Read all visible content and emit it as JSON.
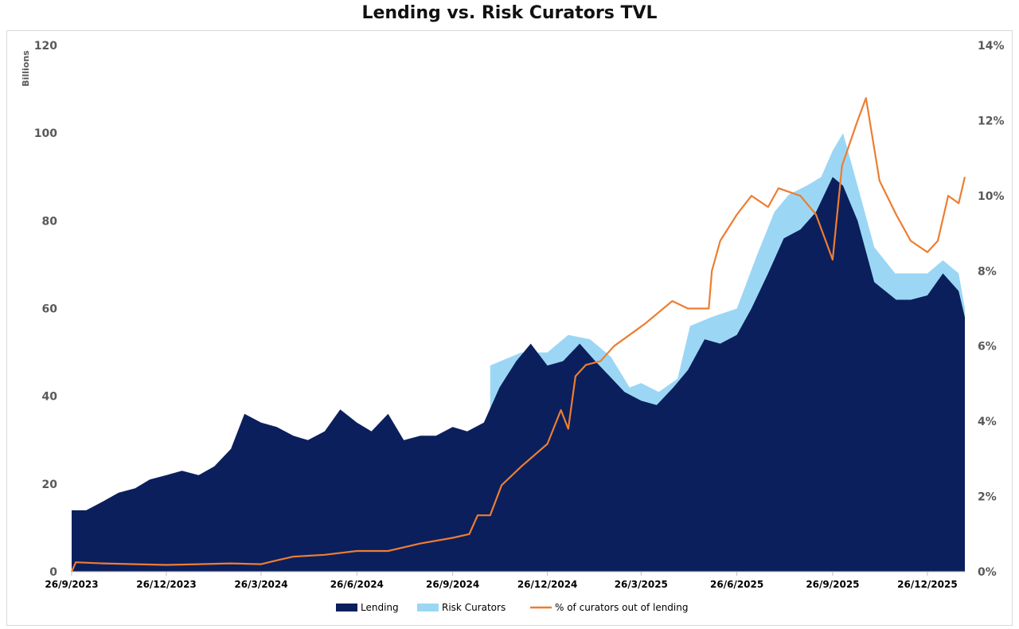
{
  "chart_data": {
    "type": "area",
    "title": "Lending vs. Risk Curators TVL",
    "y_left_unit_label": "Billions",
    "y_left_range": [
      0,
      120
    ],
    "y_left_ticks": [
      "0",
      "20",
      "40",
      "60",
      "80",
      "100",
      "120"
    ],
    "y_right_range": [
      0,
      14
    ],
    "y_right_ticks": [
      "0%",
      "2%",
      "4%",
      "6%",
      "8%",
      "10%",
      "12%",
      "14%"
    ],
    "x_range": [
      "2023-09-26",
      "2026-01-31"
    ],
    "x_ticks": [
      {
        "label": "26/9/2023",
        "date": "2023-09-26"
      },
      {
        "label": "26/12/2023",
        "date": "2023-12-26"
      },
      {
        "label": "26/3/2024",
        "date": "2024-03-26"
      },
      {
        "label": "26/6/2024",
        "date": "2024-06-26"
      },
      {
        "label": "26/9/2024",
        "date": "2024-09-26"
      },
      {
        "label": "26/12/2024",
        "date": "2024-12-26"
      },
      {
        "label": "26/3/2025",
        "date": "2025-03-26"
      },
      {
        "label": "26/6/2025",
        "date": "2025-06-26"
      },
      {
        "label": "26/9/2025",
        "date": "2025-09-26"
      },
      {
        "label": "26/12/2025",
        "date": "2025-12-26"
      }
    ],
    "legend_position": "bottom",
    "grid": false,
    "series": [
      {
        "name": "Risk Curators",
        "kind": "area",
        "axis": "left",
        "color": "#9bd7f5",
        "points": [
          [
            "2024-11-01",
            47
          ],
          [
            "2024-12-01",
            50
          ],
          [
            "2024-12-26",
            50
          ],
          [
            "2025-01-15",
            54
          ],
          [
            "2025-02-05",
            53
          ],
          [
            "2025-02-25",
            49
          ],
          [
            "2025-03-15",
            42
          ],
          [
            "2025-03-26",
            43
          ],
          [
            "2025-04-12",
            41
          ],
          [
            "2025-04-30",
            44
          ],
          [
            "2025-05-12",
            56
          ],
          [
            "2025-06-01",
            58
          ],
          [
            "2025-06-26",
            60
          ],
          [
            "2025-07-15",
            72
          ],
          [
            "2025-08-01",
            82
          ],
          [
            "2025-08-15",
            86
          ],
          [
            "2025-09-01",
            88
          ],
          [
            "2025-09-15",
            90
          ],
          [
            "2025-09-26",
            96
          ],
          [
            "2025-10-06",
            100
          ],
          [
            "2025-10-20",
            88
          ],
          [
            "2025-11-05",
            74
          ],
          [
            "2025-11-25",
            68
          ],
          [
            "2025-12-10",
            68
          ],
          [
            "2025-12-26",
            68
          ],
          [
            "2026-01-10",
            71
          ],
          [
            "2026-01-25",
            68
          ],
          [
            "2026-01-31",
            60
          ]
        ]
      },
      {
        "name": "Lending",
        "kind": "area",
        "axis": "left",
        "color": "#0b1f5c",
        "points": [
          [
            "2023-09-26",
            14
          ],
          [
            "2023-10-10",
            14
          ],
          [
            "2023-10-26",
            16
          ],
          [
            "2023-11-10",
            18
          ],
          [
            "2023-11-26",
            19
          ],
          [
            "2023-12-10",
            21
          ],
          [
            "2023-12-26",
            22
          ],
          [
            "2024-01-10",
            23
          ],
          [
            "2024-01-26",
            22
          ],
          [
            "2024-02-10",
            24
          ],
          [
            "2024-02-26",
            28
          ],
          [
            "2024-03-10",
            36
          ],
          [
            "2024-03-26",
            34
          ],
          [
            "2024-04-10",
            33
          ],
          [
            "2024-04-26",
            31
          ],
          [
            "2024-05-10",
            30
          ],
          [
            "2024-05-26",
            32
          ],
          [
            "2024-06-10",
            37
          ],
          [
            "2024-06-26",
            34
          ],
          [
            "2024-07-10",
            32
          ],
          [
            "2024-07-26",
            36
          ],
          [
            "2024-08-10",
            30
          ],
          [
            "2024-08-26",
            31
          ],
          [
            "2024-09-10",
            31
          ],
          [
            "2024-09-26",
            33
          ],
          [
            "2024-10-10",
            32
          ],
          [
            "2024-10-26",
            34
          ],
          [
            "2024-11-10",
            42
          ],
          [
            "2024-11-26",
            48
          ],
          [
            "2024-12-10",
            52
          ],
          [
            "2024-12-26",
            47
          ],
          [
            "2025-01-10",
            48
          ],
          [
            "2025-01-26",
            52
          ],
          [
            "2025-02-10",
            48
          ],
          [
            "2025-02-26",
            44
          ],
          [
            "2025-03-10",
            41
          ],
          [
            "2025-03-26",
            39
          ],
          [
            "2025-04-10",
            38
          ],
          [
            "2025-04-26",
            42
          ],
          [
            "2025-05-10",
            46
          ],
          [
            "2025-05-26",
            53
          ],
          [
            "2025-06-10",
            52
          ],
          [
            "2025-06-26",
            54
          ],
          [
            "2025-07-10",
            60
          ],
          [
            "2025-07-26",
            68
          ],
          [
            "2025-08-10",
            76
          ],
          [
            "2025-08-26",
            78
          ],
          [
            "2025-09-10",
            82
          ],
          [
            "2025-09-26",
            90
          ],
          [
            "2025-10-06",
            88
          ],
          [
            "2025-10-20",
            80
          ],
          [
            "2025-11-05",
            66
          ],
          [
            "2025-11-26",
            62
          ],
          [
            "2025-12-10",
            62
          ],
          [
            "2025-12-26",
            63
          ],
          [
            "2026-01-10",
            68
          ],
          [
            "2026-01-25",
            64
          ],
          [
            "2026-01-31",
            58
          ]
        ]
      },
      {
        "name": "% of curators out of lending",
        "kind": "line",
        "axis": "right",
        "color": "#ed7d31",
        "points": [
          [
            "2023-09-26",
            0.0
          ],
          [
            "2023-09-30",
            0.25
          ],
          [
            "2023-10-26",
            0.22
          ],
          [
            "2023-11-26",
            0.2
          ],
          [
            "2023-12-26",
            0.18
          ],
          [
            "2024-01-26",
            0.2
          ],
          [
            "2024-02-26",
            0.22
          ],
          [
            "2024-03-26",
            0.2
          ],
          [
            "2024-04-10",
            0.3
          ],
          [
            "2024-04-26",
            0.4
          ],
          [
            "2024-05-26",
            0.45
          ],
          [
            "2024-06-26",
            0.55
          ],
          [
            "2024-07-26",
            0.55
          ],
          [
            "2024-08-26",
            0.75
          ],
          [
            "2024-09-26",
            0.9
          ],
          [
            "2024-10-12",
            1.0
          ],
          [
            "2024-10-20",
            1.5
          ],
          [
            "2024-11-01",
            1.5
          ],
          [
            "2024-11-12",
            2.3
          ],
          [
            "2024-12-01",
            2.8
          ],
          [
            "2024-12-26",
            3.4
          ],
          [
            "2025-01-08",
            4.3
          ],
          [
            "2025-01-15",
            3.8
          ],
          [
            "2025-01-22",
            5.2
          ],
          [
            "2025-02-01",
            5.5
          ],
          [
            "2025-02-15",
            5.6
          ],
          [
            "2025-02-28",
            6.0
          ],
          [
            "2025-03-20",
            6.4
          ],
          [
            "2025-03-30",
            6.6
          ],
          [
            "2025-04-12",
            6.9
          ],
          [
            "2025-04-25",
            7.2
          ],
          [
            "2025-05-10",
            7.0
          ],
          [
            "2025-05-30",
            7.0
          ],
          [
            "2025-06-02",
            8.0
          ],
          [
            "2025-06-10",
            8.8
          ],
          [
            "2025-06-26",
            9.5
          ],
          [
            "2025-07-10",
            10.0
          ],
          [
            "2025-07-26",
            9.7
          ],
          [
            "2025-08-05",
            10.2
          ],
          [
            "2025-08-26",
            10.0
          ],
          [
            "2025-09-10",
            9.5
          ],
          [
            "2025-09-26",
            8.3
          ],
          [
            "2025-10-05",
            10.8
          ],
          [
            "2025-10-20",
            12.0
          ],
          [
            "2025-10-28",
            12.6
          ],
          [
            "2025-11-10",
            10.4
          ],
          [
            "2025-11-26",
            9.5
          ],
          [
            "2025-12-10",
            8.8
          ],
          [
            "2025-12-26",
            8.5
          ],
          [
            "2026-01-05",
            8.8
          ],
          [
            "2026-01-15",
            10.0
          ],
          [
            "2026-01-25",
            9.8
          ],
          [
            "2026-01-31",
            10.5
          ]
        ]
      }
    ]
  }
}
